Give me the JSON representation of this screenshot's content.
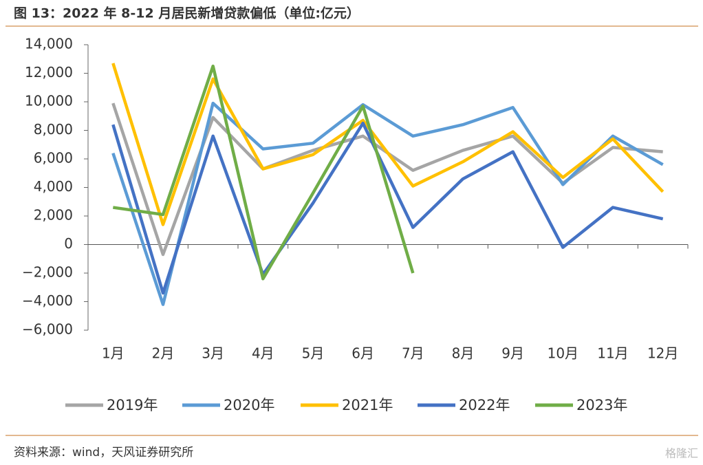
{
  "title": "图 13：2022 年 8-12 月居民新增贷款偏低（单位:亿元）",
  "source": "资料来源：wind，天风证券研究所",
  "watermark": "格隆汇",
  "chart_data": {
    "type": "line",
    "categories": [
      "1月",
      "2月",
      "3月",
      "4月",
      "5月",
      "6月",
      "7月",
      "8月",
      "9月",
      "10月",
      "11月",
      "12月"
    ],
    "series": [
      {
        "name": "2019年",
        "color": "#a5a5a5",
        "values": [
          9900,
          -700,
          8900,
          5300,
          6600,
          7600,
          5200,
          6600,
          7600,
          4300,
          6800,
          6500
        ]
      },
      {
        "name": "2020年",
        "color": "#5b9bd5",
        "values": [
          6400,
          -4200,
          9900,
          6700,
          7100,
          9800,
          7600,
          8400,
          9600,
          4200,
          7600,
          5600
        ]
      },
      {
        "name": "2021年",
        "color": "#ffc000",
        "values": [
          12700,
          1400,
          11600,
          5300,
          6300,
          8700,
          4100,
          5800,
          7900,
          4700,
          7400,
          3700
        ]
      },
      {
        "name": "2022年",
        "color": "#4472c4",
        "values": [
          8400,
          -3400,
          7600,
          -2100,
          2900,
          8500,
          1200,
          4600,
          6500,
          -200,
          2600,
          1800
        ]
      },
      {
        "name": "2023年",
        "color": "#70ad47",
        "values": [
          2600,
          2100,
          12500,
          -2400,
          3600,
          9700,
          -2000,
          null,
          null,
          null,
          null,
          null
        ]
      }
    ],
    "ylim": [
      -6000,
      14000
    ],
    "yticks": [
      {
        "value": 14000,
        "label": "14,000"
      },
      {
        "value": 12000,
        "label": "12,000"
      },
      {
        "value": 10000,
        "label": "10,000"
      },
      {
        "value": 8000,
        "label": "8,000"
      },
      {
        "value": 6000,
        "label": "6,000"
      },
      {
        "value": 4000,
        "label": "4,000"
      },
      {
        "value": 2000,
        "label": "2,000"
      },
      0,
      {
        "value": -2000,
        "label": "−2,000"
      },
      {
        "value": -4000,
        "label": "−4,000"
      },
      {
        "value": -6000,
        "label": "−6,000"
      }
    ]
  }
}
